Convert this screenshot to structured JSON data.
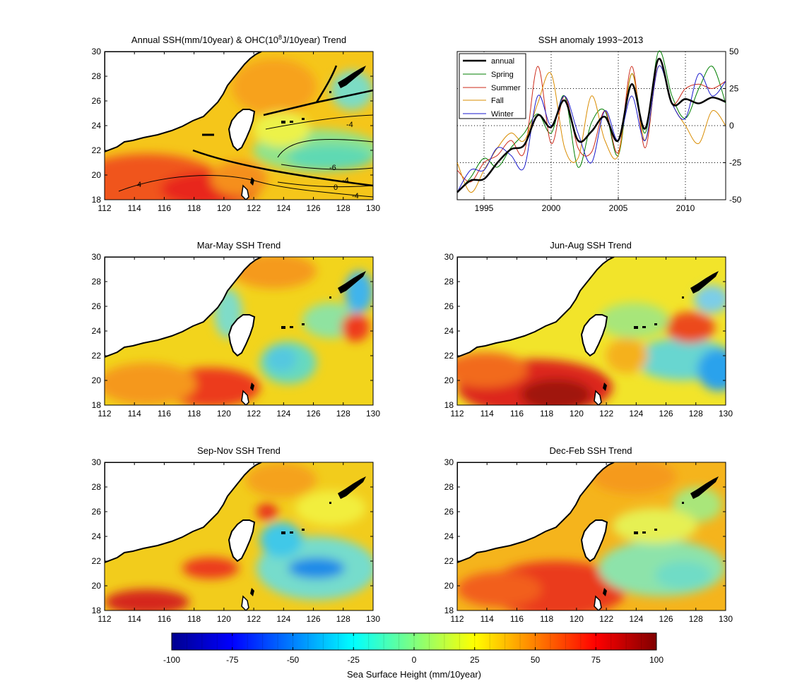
{
  "figure": {
    "titles": {
      "annual_prefix": "Annual SSH(mm/10year) & OHC(10",
      "annual_exp": "8",
      "annual_suffix": "J/10year) Trend",
      "anomaly": "SSH anomaly 1993~2013",
      "spring": "Mar-May SSH Trend",
      "summer": "Jun-Aug SSH Trend",
      "fall": "Sep-Nov SSH Trend",
      "winter": "Dec-Feb SSH Trend"
    },
    "map_axes": {
      "x_ticks": [
        "112",
        "114",
        "116",
        "118",
        "120",
        "122",
        "124",
        "126",
        "128",
        "130"
      ],
      "y_ticks": [
        "18",
        "20",
        "22",
        "24",
        "26",
        "28",
        "30"
      ]
    },
    "contour_labels": [
      "-4",
      "-6",
      "-4",
      "0",
      "-4",
      "4"
    ],
    "colorbar": {
      "ticks": [
        "-100",
        "-75",
        "-50",
        "-25",
        "0",
        "25",
        "50",
        "75",
        "100"
      ],
      "label": "Sea Surface Height (mm/10year)"
    },
    "colors": {
      "annual": "#000000",
      "spring": "#007f00",
      "summer": "#cc2a1a",
      "fall": "#d98c00",
      "winter": "#1a1acc"
    }
  },
  "chart_data": [
    {
      "type": "heatmap",
      "title": "Annual SSH(mm/10year) & OHC(10^8J/10year) Trend",
      "xlim": [
        112,
        130
      ],
      "ylim": [
        18,
        30
      ],
      "colormap": "jet",
      "clim": [
        -100,
        100
      ],
      "contours": "OHC trend, labels -6, -4, 0, 4"
    },
    {
      "type": "line",
      "title": "SSH anomaly 1993~2013",
      "xlim": [
        1993,
        2013
      ],
      "ylim": [
        -50,
        50
      ],
      "x_ticks": [
        "1995",
        "2000",
        "2005",
        "2010"
      ],
      "y_ticks_right": [
        "50",
        "25",
        "0",
        "-25",
        "-50"
      ],
      "grid": true,
      "legend": "top-left",
      "x": [
        1993,
        1994,
        1995,
        1996,
        1997,
        1998,
        1999,
        2000,
        2001,
        2002,
        2003,
        2004,
        2005,
        2006,
        2007,
        2008,
        2009,
        2010,
        2011,
        2012,
        2013
      ],
      "series": [
        {
          "name": "annual",
          "values": [
            -45,
            -37,
            -36,
            -25,
            -16,
            -13,
            7,
            -1,
            17,
            -10,
            -4,
            6,
            -10,
            28,
            -2,
            45,
            15,
            18,
            15,
            19,
            16
          ]
        },
        {
          "name": "Spring",
          "values": [
            -45,
            -35,
            -22,
            -28,
            -15,
            -5,
            8,
            -5,
            20,
            -28,
            2,
            10,
            -20,
            35,
            -5,
            50,
            20,
            5,
            25,
            40,
            15
          ]
        },
        {
          "name": "Summer",
          "values": [
            -30,
            -38,
            -25,
            -20,
            -10,
            -18,
            40,
            -12,
            20,
            -15,
            -18,
            10,
            -18,
            40,
            -15,
            45,
            15,
            25,
            28,
            25,
            30
          ]
        },
        {
          "name": "Fall",
          "values": [
            -25,
            -45,
            -30,
            -15,
            -5,
            -10,
            15,
            35,
            -15,
            -22,
            20,
            -10,
            -20,
            35,
            -10,
            40,
            15,
            0,
            -12,
            10,
            0
          ]
        },
        {
          "name": "Winter",
          "values": [
            -45,
            -30,
            -30,
            -15,
            -20,
            -28,
            20,
            0,
            20,
            -5,
            -25,
            10,
            -10,
            20,
            -10,
            40,
            15,
            5,
            35,
            20,
            30
          ]
        }
      ]
    },
    {
      "type": "heatmap",
      "title": "Mar-May SSH Trend",
      "xlim": [
        112,
        130
      ],
      "ylim": [
        18,
        30
      ],
      "colormap": "jet",
      "clim": [
        -100,
        100
      ]
    },
    {
      "type": "heatmap",
      "title": "Jun-Aug SSH Trend",
      "xlim": [
        112,
        130
      ],
      "ylim": [
        18,
        30
      ],
      "colormap": "jet",
      "clim": [
        -100,
        100
      ]
    },
    {
      "type": "heatmap",
      "title": "Sep-Nov SSH Trend",
      "xlim": [
        112,
        130
      ],
      "ylim": [
        18,
        30
      ],
      "colormap": "jet",
      "clim": [
        -100,
        100
      ]
    },
    {
      "type": "heatmap",
      "title": "Dec-Feb SSH Trend",
      "xlim": [
        112,
        130
      ],
      "ylim": [
        18,
        30
      ],
      "colormap": "jet",
      "clim": [
        -100,
        100
      ]
    }
  ]
}
